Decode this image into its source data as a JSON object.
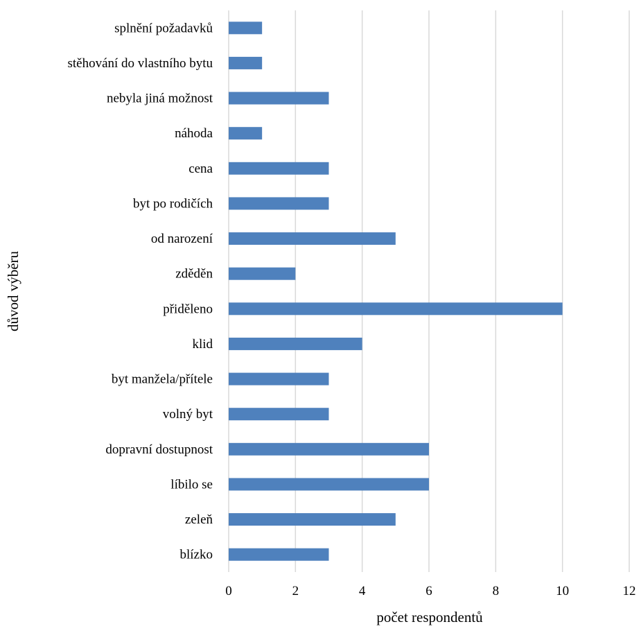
{
  "chart_data": {
    "type": "bar",
    "orientation": "horizontal",
    "categories": [
      "splnění požadavků",
      "stěhování do vlastního bytu",
      "nebyla jiná možnost",
      "náhoda",
      "cena",
      "byt po rodičích",
      "od narození",
      "zděděn",
      "přiděleno",
      "klid",
      "byt manžela/přítele",
      "volný byt",
      "dopravní dostupnost",
      "líbilo se",
      "zeleň",
      "blízko"
    ],
    "values": [
      1,
      1,
      3,
      1,
      3,
      3,
      5,
      2,
      10,
      4,
      3,
      3,
      6,
      6,
      5,
      3
    ],
    "xlabel": "počet respondentů",
    "ylabel": "důvod výběru",
    "xlim": [
      0,
      12
    ],
    "xticks": [
      "0",
      "2",
      "4",
      "6",
      "8",
      "10",
      "12"
    ],
    "grid": "vertical",
    "legend": "none",
    "bar_color": "#4f81bd",
    "grid_color": "#d9d9d9"
  }
}
